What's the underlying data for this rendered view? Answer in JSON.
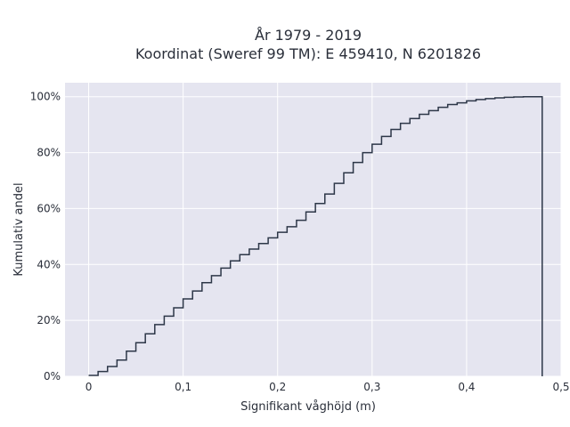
{
  "chart_data": {
    "type": "line",
    "step": true,
    "title_lines": [
      "År 1979 - 2019",
      "Koordinat (Sweref 99 TM): E 459410, N 6201826"
    ],
    "xlabel": "Signifikant våghöjd (m)",
    "ylabel": "Kumulativ andel",
    "xlim": [
      -0.025,
      0.5
    ],
    "ylim": [
      0,
      1.05
    ],
    "xticks": [
      {
        "value": 0,
        "label": "0"
      },
      {
        "value": 0.1,
        "label": "0,1"
      },
      {
        "value": 0.2,
        "label": "0,2"
      },
      {
        "value": 0.3,
        "label": "0,3"
      },
      {
        "value": 0.4,
        "label": "0,4"
      },
      {
        "value": 0.5,
        "label": "0,5"
      }
    ],
    "yticks": [
      {
        "value": 0,
        "label": "0%"
      },
      {
        "value": 0.2,
        "label": "20%"
      },
      {
        "value": 0.4,
        "label": "40%"
      },
      {
        "value": 0.6,
        "label": "60%"
      },
      {
        "value": 0.8,
        "label": "80%"
      },
      {
        "value": 1.0,
        "label": "100%"
      }
    ],
    "grid": true,
    "colors": {
      "plot_bg": "#e5e5f0",
      "grid": "#ffffff",
      "line": "#2d3748",
      "text": "#2a2f3a"
    },
    "series": [
      {
        "x": [
          0,
          0.01,
          0.02,
          0.03,
          0.04,
          0.05,
          0.06,
          0.07,
          0.08,
          0.09,
          0.1,
          0.11,
          0.12,
          0.13,
          0.14,
          0.15,
          0.16,
          0.17,
          0.18,
          0.19,
          0.2,
          0.21,
          0.22,
          0.23,
          0.24,
          0.25,
          0.26,
          0.27,
          0.28,
          0.29,
          0.3,
          0.31,
          0.32,
          0.33,
          0.34,
          0.35,
          0.36,
          0.37,
          0.38,
          0.39,
          0.4,
          0.41,
          0.42,
          0.43,
          0.44,
          0.45,
          0.46,
          0.47,
          0.48
        ],
        "y": [
          0.003,
          0.017,
          0.035,
          0.058,
          0.09,
          0.12,
          0.152,
          0.185,
          0.215,
          0.245,
          0.277,
          0.305,
          0.335,
          0.36,
          0.387,
          0.413,
          0.435,
          0.455,
          0.475,
          0.495,
          0.515,
          0.535,
          0.558,
          0.588,
          0.618,
          0.652,
          0.69,
          0.728,
          0.765,
          0.8,
          0.83,
          0.858,
          0.883,
          0.905,
          0.922,
          0.937,
          0.95,
          0.962,
          0.972,
          0.978,
          0.985,
          0.99,
          0.993,
          0.996,
          0.998,
          0.999,
          1.0,
          1.0,
          0
        ]
      }
    ]
  }
}
